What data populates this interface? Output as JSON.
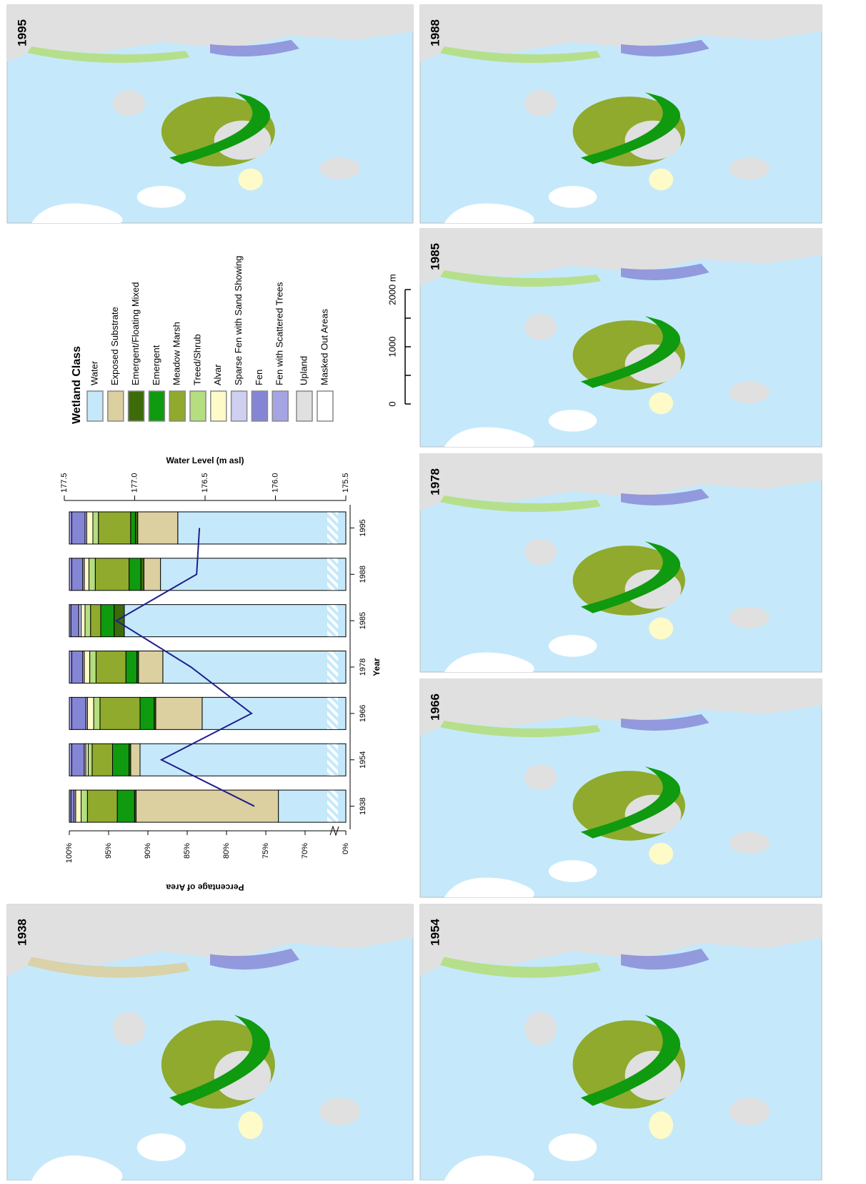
{
  "maps": [
    {
      "title": "1938"
    },
    {
      "title": "1954"
    },
    {
      "title": "1966"
    },
    {
      "title": "1978"
    },
    {
      "title": "1985"
    },
    {
      "title": "1988"
    },
    {
      "title": "1995"
    }
  ],
  "legend_title": "Wetland Class",
  "extra_legend": [
    {
      "name": "Upland",
      "color": "#e0e0e0"
    },
    {
      "name": "Masked Out Areas",
      "color": "#ffffff"
    }
  ],
  "scale_bar": {
    "labels": [
      "0",
      "1000",
      "2000 m"
    ]
  },
  "chart_data": {
    "type": "bar",
    "stacked": true,
    "y_break": true,
    "xlabel": "Year",
    "ylabel": "Percentage of Area",
    "y2label": "Water Level (m asl)",
    "categories": [
      "1938",
      "1954",
      "1966",
      "1978",
      "1985",
      "1988",
      "1995"
    ],
    "ylim": [
      0,
      100
    ],
    "yticks": [
      {
        "value": 0,
        "label": "0%"
      },
      {
        "value": 70,
        "label": "70%"
      },
      {
        "value": 75,
        "label": "75%"
      },
      {
        "value": 80,
        "label": "80%"
      },
      {
        "value": 85,
        "label": "85%"
      },
      {
        "value": 90,
        "label": "90%"
      },
      {
        "value": 95,
        "label": "95%"
      },
      {
        "value": 100,
        "label": "100%"
      }
    ],
    "y2lim": [
      175.5,
      177.5
    ],
    "y2ticks": [
      175.5,
      {
        "value": 176,
        "label": "176.0"
      },
      176.5,
      {
        "value": 177,
        "label": "177.0"
      },
      177.5
    ],
    "series": [
      {
        "name": "Water",
        "color": "#c5e9fb",
        "values": [
          73.4,
          91.0,
          83.1,
          88.1,
          93.0,
          88.4,
          86.2
        ]
      },
      {
        "name": "Exposed Substrate",
        "color": "#dccfa0",
        "values": [
          18.1,
          1.2,
          5.9,
          3.1,
          0,
          2.1,
          5.1
        ]
      },
      {
        "name": "Emergent/Floating Mixed",
        "color": "#3d6b0a",
        "values": [
          0.2,
          0.2,
          0.2,
          0.2,
          1.3,
          0.4,
          0.3
        ]
      },
      {
        "name": "Emergent",
        "color": "#0f9a10",
        "values": [
          2.2,
          2.1,
          1.8,
          1.4,
          1.7,
          1.5,
          0.6
        ]
      },
      {
        "name": "Meadow Marsh",
        "color": "#8faa2c",
        "values": [
          3.8,
          2.6,
          5.1,
          3.8,
          1.3,
          4.3,
          4.1
        ]
      },
      {
        "name": "Treed/Shrub",
        "color": "#b4de80",
        "values": [
          0.8,
          0.5,
          0.8,
          0.8,
          0.7,
          0.8,
          0.7
        ]
      },
      {
        "name": "Alvar",
        "color": "#fffbc8",
        "values": [
          0.7,
          0.3,
          0.8,
          0.7,
          0.5,
          0.6,
          0.8
        ]
      },
      {
        "name": "Sparse Fen with Sand Showing",
        "color": "#cfd0f0",
        "values": [
          0.2,
          0.2,
          0.2,
          0.2,
          0.3,
          0.2,
          0.2
        ]
      },
      {
        "name": "Fen",
        "color": "#8585d6",
        "values": [
          0.4,
          1.6,
          1.8,
          1.4,
          1.0,
          1.4,
          1.7
        ]
      },
      {
        "name": "Fen with Scattered Trees",
        "color": "#a5a5e3",
        "values": [
          0.2,
          0.3,
          0.3,
          0.3,
          0.2,
          0.3,
          0.3
        ]
      }
    ],
    "line": {
      "color": "#1f1f8c",
      "axis": "y2",
      "values": [
        176.15,
        176.81,
        176.17,
        176.6,
        177.13,
        176.56,
        176.54
      ]
    }
  }
}
